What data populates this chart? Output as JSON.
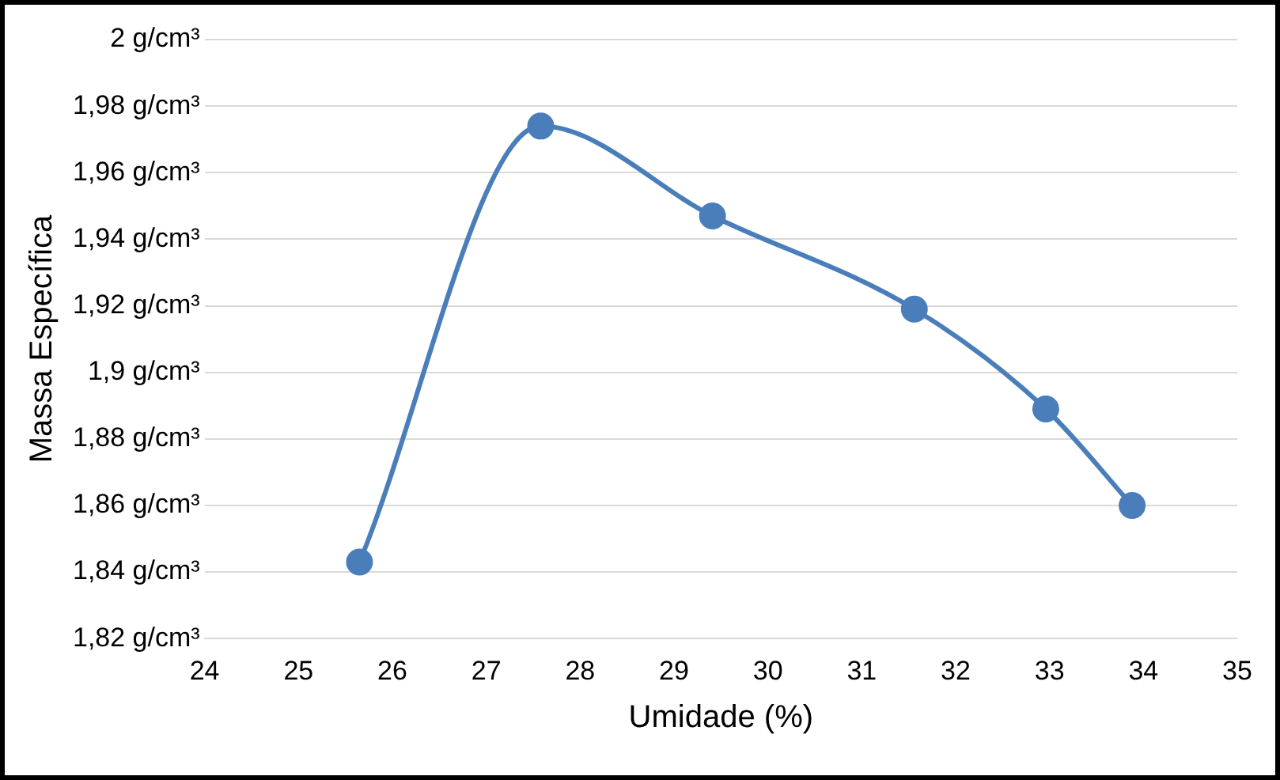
{
  "chart_data": {
    "type": "line",
    "xlabel": "Umidade (%)",
    "ylabel": "Massa Específica",
    "x": [
      25.65,
      27.58,
      29.41,
      31.56,
      32.96,
      33.88
    ],
    "series": [
      {
        "color": "#4a7ebb",
        "values": [
          1.843,
          1.974,
          1.947,
          1.919,
          1.889,
          1.86
        ]
      }
    ],
    "xlim": [
      24,
      35
    ],
    "xticks": [
      24,
      25,
      26,
      27,
      28,
      29,
      30,
      31,
      32,
      33,
      34,
      35
    ],
    "ylim": [
      1.82,
      2
    ],
    "yticks": [
      {
        "value": 1.82,
        "label": "1,82 g/cm³"
      },
      {
        "value": 1.84,
        "label": "1,84 g/cm³"
      },
      {
        "value": 1.86,
        "label": "1,86 g/cm³"
      },
      {
        "value": 1.88,
        "label": "1,88 g/cm³"
      },
      {
        "value": 1.9,
        "label": "1,9 g/cm³"
      },
      {
        "value": 1.92,
        "label": "1,92 g/cm³"
      },
      {
        "value": 1.94,
        "label": "1,94 g/cm³"
      },
      {
        "value": 1.96,
        "label": "1,96 g/cm³"
      },
      {
        "value": 1.98,
        "label": "1,98 g/cm³"
      },
      {
        "value": 2,
        "label": "2 g/cm³"
      }
    ],
    "grid": "y",
    "legend": false,
    "marker": "circle",
    "line_style": "solid"
  }
}
